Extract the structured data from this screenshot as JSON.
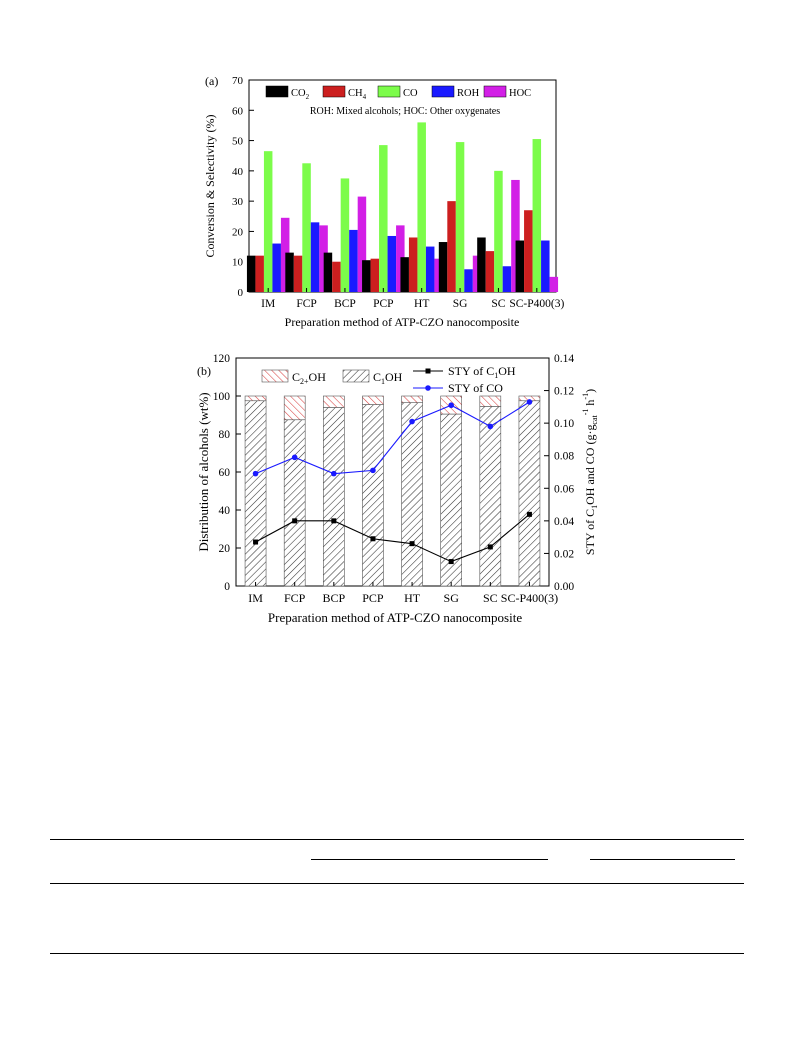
{
  "chart_data": [
    {
      "type": "bar",
      "panel_label": "(a)",
      "xlabel": "Preparation method of ATP-CZO nanocomposite",
      "ylabel": "Conversion & Selectivity (%)",
      "ylim": [
        0,
        70
      ],
      "yticks": [
        "0",
        "10",
        "20",
        "30",
        "40",
        "50",
        "60",
        "70"
      ],
      "categories": [
        "IM",
        "FCP",
        "BCP",
        "PCP",
        "HT",
        "SG",
        "SC",
        "SC-P400(3)"
      ],
      "legend": {
        "placement": "top",
        "note": "ROH: Mixed alcohols;  HOC: Other oxygenates",
        "entries": [
          {
            "text": "CO",
            "sub": "2",
            "color": "#000000"
          },
          {
            "text": "CH",
            "sub": "4",
            "color": "#cc1f1f"
          },
          {
            "text": "CO",
            "sub": "",
            "color": "#7cfc4a"
          },
          {
            "text": "ROH",
            "sub": "",
            "color": "#1a1aff"
          },
          {
            "text": "HOC",
            "sub": "",
            "color": "#d21fe6"
          }
        ]
      },
      "series": [
        {
          "name": "CO2",
          "color": "#000000",
          "values": [
            12,
            13,
            13,
            10.5,
            11.5,
            16.5,
            18,
            17
          ]
        },
        {
          "name": "CH4",
          "color": "#cc1f1f",
          "values": [
            12,
            12,
            10,
            11,
            18,
            30,
            13.5,
            27
          ]
        },
        {
          "name": "CO",
          "color": "#7cfc4a",
          "values": [
            46.5,
            42.5,
            37.5,
            48.5,
            56,
            49.5,
            40,
            50.5
          ]
        },
        {
          "name": "ROH",
          "color": "#1a1aff",
          "values": [
            16,
            23,
            20.5,
            18.5,
            15,
            7.5,
            8.5,
            17
          ]
        },
        {
          "name": "HOC",
          "color": "#d21fe6",
          "values": [
            24.5,
            22,
            31.5,
            22,
            11,
            12,
            37,
            5
          ]
        }
      ]
    },
    {
      "type": "bar",
      "panel_label": "(b)",
      "xlabel": "Preparation method of ATP-CZO nanocomposite",
      "ylabel": "Distribution of alcohols (wt%)",
      "ylabel_right": "STY of C1OH and CO (g·g-1cat h-1)",
      "ylim": [
        0,
        120
      ],
      "ylim_right": [
        0,
        0.14
      ],
      "yticks": [
        "0",
        "20",
        "40",
        "60",
        "80",
        "100",
        "120"
      ],
      "yticks_right": [
        "0.00",
        "0.02",
        "0.04",
        "0.06",
        "0.08",
        "0.10",
        "0.12",
        "0.14"
      ],
      "categories": [
        "IM",
        "FCP",
        "BCP",
        "PCP",
        "HT",
        "SG",
        "SC",
        "SC-P400(3)"
      ],
      "legend": {
        "placement": "top",
        "bars": [
          {
            "text": "C",
            "sub": "2+",
            "after": "OH",
            "pattern": "red-hatch"
          },
          {
            "text": "C",
            "sub": "1",
            "after": "OH",
            "pattern": "black-hatch"
          }
        ],
        "lines": [
          {
            "text": "STY of C",
            "sub": "1",
            "after": "OH",
            "color": "#000000"
          },
          {
            "text": "STY of CO",
            "sub": "",
            "after": "",
            "color": "#1a1aff"
          }
        ]
      },
      "stacked_series": [
        {
          "name": "C1OH",
          "values": [
            97.5,
            87.5,
            94,
            95.5,
            96.5,
            90.5,
            94.5,
            97.5
          ]
        },
        {
          "name": "C2+OH",
          "values": [
            2.5,
            12.5,
            6,
            4.5,
            3.5,
            9.5,
            5.5,
            2.5
          ]
        }
      ],
      "line_series": [
        {
          "name": "STY of C1OH",
          "color": "#000000",
          "axis": "right",
          "values": [
            0.027,
            0.04,
            0.04,
            0.029,
            0.026,
            0.015,
            0.024,
            0.044
          ]
        },
        {
          "name": "STY of CO",
          "color": "#1a1aff",
          "axis": "right",
          "values": [
            0.069,
            0.079,
            0.069,
            0.071,
            0.101,
            0.111,
            0.098,
            0.113
          ]
        }
      ]
    }
  ]
}
